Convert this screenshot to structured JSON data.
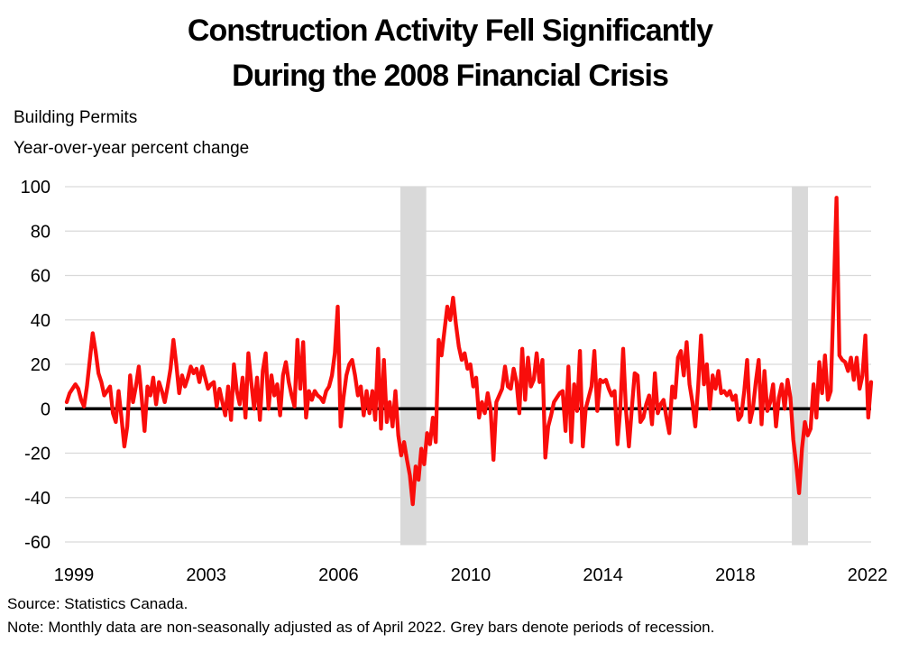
{
  "title": {
    "line1": "Construction Activity Fell Significantly",
    "line2": "During the 2008 Financial Crisis"
  },
  "subtitle": {
    "line1": "Building Permits",
    "line2": "Year-over-year percent change"
  },
  "footer": {
    "source": "Source: Statistics Canada.",
    "note": "Note: Monthly data are non-seasonally adjusted as of April 2022. Grey bars denote periods of recession."
  },
  "chart_data": {
    "type": "line",
    "title": "Construction Activity Fell Significantly During the 2008 Financial Crisis",
    "ylabel": "Year-over-year percent change",
    "series_label": "Building Permits",
    "frequency": "monthly",
    "x_start": "1999-01",
    "x_end": "2022-04",
    "x_tick_labels": [
      "1999",
      "2003",
      "2006",
      "2010",
      "2014",
      "2018",
      "2022"
    ],
    "y_ticks": [
      100,
      80,
      60,
      40,
      20,
      0,
      -20,
      -40,
      -60
    ],
    "ylim": [
      -60,
      100
    ],
    "grid": "horizontal",
    "zero_line": true,
    "line_color": "#f90d0b",
    "grid_color": "#d9d9d9",
    "recession_band_color": "#d9d9d9",
    "recession_bands": [
      {
        "start_index": 115.7,
        "end_index": 124.7
      },
      {
        "start_index": 251.5,
        "end_index": 257.1
      }
    ],
    "series": [
      {
        "name": "Building permits, year-over-year percent change",
        "values": [
          3,
          7,
          9,
          11,
          9,
          4,
          1,
          10,
          22,
          34,
          26,
          16,
          12,
          6,
          8,
          10,
          -2,
          -6,
          8,
          -4,
          -17,
          -8,
          15,
          3,
          10,
          19,
          5,
          -10,
          10,
          6,
          14,
          2,
          12,
          8,
          3,
          10,
          18,
          31,
          20,
          7,
          15,
          10,
          14,
          19,
          16,
          18,
          12,
          19,
          14,
          9,
          11,
          12,
          1,
          9,
          3,
          -3,
          10,
          -5,
          20,
          8,
          2,
          14,
          -4,
          25,
          12,
          0,
          14,
          -5,
          17,
          25,
          0,
          15,
          6,
          11,
          -3,
          15,
          21,
          12,
          6,
          1,
          31,
          9,
          30,
          -4,
          8,
          4,
          8,
          6,
          5,
          3,
          8,
          10,
          15,
          25,
          46,
          -8,
          5,
          15,
          20,
          22,
          15,
          6,
          10,
          -3,
          8,
          -2,
          8,
          -5,
          27,
          -9,
          22,
          -6,
          3,
          -8,
          8,
          -12,
          -21,
          -15,
          -23,
          -30,
          -43,
          -26,
          -32,
          -18,
          -25,
          -11,
          -16,
          -4,
          -15,
          31,
          24,
          35,
          46,
          40,
          50,
          38,
          28,
          22,
          25,
          18,
          20,
          10,
          14,
          -4,
          3,
          -2,
          7,
          0,
          -23,
          3,
          6,
          9,
          19,
          10,
          9,
          18,
          12,
          -2,
          27,
          4,
          23,
          10,
          13,
          25,
          12,
          22,
          -22,
          -8,
          -3,
          3,
          5,
          7,
          8,
          -10,
          19,
          -15,
          11,
          -1,
          26,
          -17,
          0,
          5,
          10,
          26,
          -1,
          13,
          12,
          13,
          9,
          6,
          8,
          -16,
          0,
          27,
          -1,
          -17,
          0,
          16,
          15,
          -6,
          -4,
          2,
          6,
          -7,
          16,
          -2,
          2,
          4,
          -4,
          -11,
          10,
          5,
          23,
          26,
          15,
          30,
          11,
          3,
          -8,
          10,
          33,
          11,
          20,
          0,
          15,
          9,
          17,
          7,
          8,
          6,
          8,
          4,
          6,
          -5,
          -3,
          8,
          22,
          -6,
          0,
          12,
          22,
          -7,
          17,
          -1,
          3,
          11,
          -8,
          5,
          11,
          0,
          13,
          5,
          -14,
          -25,
          -38,
          -18,
          -6,
          -12,
          -9,
          11,
          -4,
          21,
          7,
          24,
          4,
          8,
          50,
          95,
          24,
          22,
          21,
          17,
          23,
          13,
          23,
          9,
          15,
          33,
          -4,
          12
        ]
      }
    ]
  }
}
